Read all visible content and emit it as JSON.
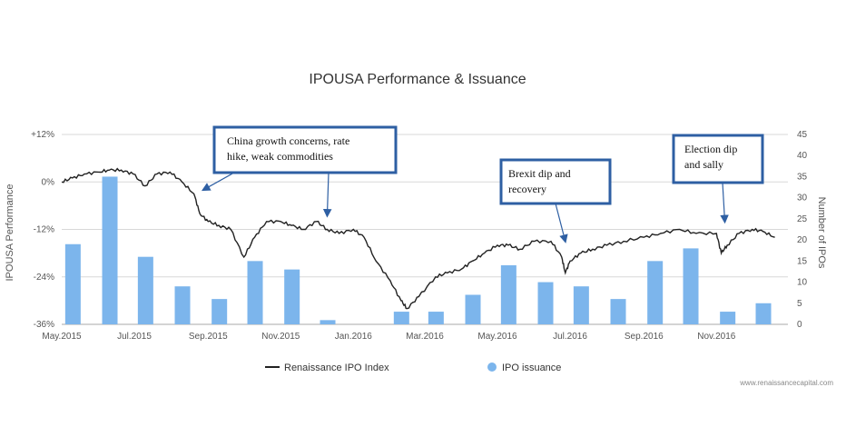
{
  "chart_data": {
    "type": "bar+line",
    "title": "IPOUSA Performance & Issuance",
    "y_left": {
      "label": "IPOUSA Performance",
      "range": [
        -36,
        12
      ],
      "ticks": [
        "+12%",
        "0%",
        "-12%",
        "-24%",
        "-36%"
      ]
    },
    "y_right": {
      "label": "Number of IPOs",
      "range": [
        0,
        45
      ],
      "ticks": [
        "45",
        "40",
        "35",
        "30",
        "25",
        "20",
        "15",
        "10",
        "5",
        "0"
      ]
    },
    "x_ticks": [
      "May.2015",
      "Jul.2015",
      "Sep.2015",
      "Nov.2015",
      "Jan.2016",
      "Mar.2016",
      "May.2016",
      "Jul.2016",
      "Sep.2016",
      "Nov.2016"
    ],
    "bars": {
      "name": "IPO issuance",
      "color": "#7cb5ec",
      "months": [
        "May.2015",
        "Jun.2015",
        "Jul.2015",
        "Aug.2015",
        "Sep.2015",
        "Oct.2015",
        "Nov.2015",
        "Dec.2015",
        "Jan.2016",
        "Feb.2016",
        "Mar.2016",
        "Apr.2016",
        "May.2016",
        "Jun.2016",
        "Jul.2016",
        "Aug.2016",
        "Sep.2016",
        "Oct.2016",
        "Nov.2016",
        "Dec.2016"
      ],
      "values": [
        19,
        35,
        16,
        9,
        6,
        15,
        13,
        1,
        0,
        3,
        3,
        7,
        14,
        10,
        9,
        6,
        15,
        18,
        3,
        5
      ]
    },
    "line": {
      "name": "Renaissance IPO Index",
      "color": "#222222",
      "points": [
        [
          "2015-05-01",
          0
        ],
        [
          "2015-05-10",
          1
        ],
        [
          "2015-05-20",
          2
        ],
        [
          "2015-06-01",
          2.5
        ],
        [
          "2015-06-10",
          3
        ],
        [
          "2015-06-20",
          3
        ],
        [
          "2015-06-30",
          2
        ],
        [
          "2015-07-10",
          -1
        ],
        [
          "2015-07-20",
          2
        ],
        [
          "2015-07-31",
          2.5
        ],
        [
          "2015-08-10",
          0
        ],
        [
          "2015-08-20",
          -3
        ],
        [
          "2015-08-25",
          -8
        ],
        [
          "2015-09-01",
          -10
        ],
        [
          "2015-09-10",
          -11
        ],
        [
          "2015-09-20",
          -12
        ],
        [
          "2015-10-01",
          -19
        ],
        [
          "2015-10-10",
          -14
        ],
        [
          "2015-10-20",
          -10
        ],
        [
          "2015-11-01",
          -10
        ],
        [
          "2015-11-10",
          -11
        ],
        [
          "2015-11-20",
          -12
        ],
        [
          "2015-12-01",
          -10
        ],
        [
          "2015-12-10",
          -12
        ],
        [
          "2015-12-20",
          -13
        ],
        [
          "2016-01-01",
          -12
        ],
        [
          "2016-01-10",
          -14
        ],
        [
          "2016-01-20",
          -20
        ],
        [
          "2016-02-01",
          -25
        ],
        [
          "2016-02-10",
          -30
        ],
        [
          "2016-02-15",
          -32
        ],
        [
          "2016-02-25",
          -29
        ],
        [
          "2016-03-10",
          -24
        ],
        [
          "2016-03-20",
          -23
        ],
        [
          "2016-04-01",
          -22
        ],
        [
          "2016-04-10",
          -20
        ],
        [
          "2016-04-20",
          -18
        ],
        [
          "2016-05-01",
          -16
        ],
        [
          "2016-05-10",
          -16
        ],
        [
          "2016-05-20",
          -17
        ],
        [
          "2016-06-01",
          -15
        ],
        [
          "2016-06-15",
          -15
        ],
        [
          "2016-06-24",
          -19
        ],
        [
          "2016-06-27",
          -23
        ],
        [
          "2016-07-01",
          -20
        ],
        [
          "2016-07-10",
          -18
        ],
        [
          "2016-07-20",
          -17
        ],
        [
          "2016-08-01",
          -16
        ],
        [
          "2016-08-15",
          -15
        ],
        [
          "2016-09-01",
          -14
        ],
        [
          "2016-09-15",
          -13
        ],
        [
          "2016-10-01",
          -12
        ],
        [
          "2016-10-15",
          -13
        ],
        [
          "2016-11-01",
          -13
        ],
        [
          "2016-11-05",
          -18
        ],
        [
          "2016-11-10",
          -16
        ],
        [
          "2016-11-20",
          -13
        ],
        [
          "2016-12-01",
          -12
        ],
        [
          "2016-12-10",
          -12.5
        ],
        [
          "2016-12-20",
          -14
        ]
      ]
    },
    "annotations": [
      {
        "text_lines": [
          "China growth concerns, rate",
          "hike, weak commodities"
        ],
        "target_date": "2015-08-28",
        "target_y": -2
      },
      {
        "text_lines": [
          "Brexit dip and",
          "recovery"
        ],
        "target_date": "2016-06-27",
        "target_y": -15
      },
      {
        "text_lines": [
          "Election dip",
          "and sally"
        ],
        "target_date": "2016-11-08",
        "target_y": -10
      }
    ],
    "extra_arrow": {
      "target_date": "2015-12-10",
      "target_y": -8.5
    },
    "legend": {
      "position": "bottom"
    },
    "grid": true
  },
  "credit": "www.renaissancecapital.com"
}
